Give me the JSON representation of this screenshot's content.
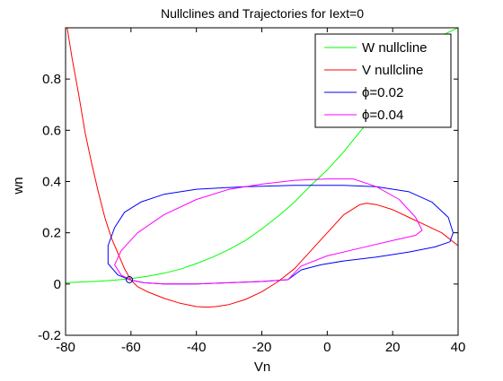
{
  "chart_data": {
    "type": "line",
    "title": "Nullclines and Trajectories for Iext=0",
    "xlabel": "Vn",
    "ylabel": "wn",
    "xlim": [
      -80,
      40
    ],
    "ylim": [
      -0.2,
      1.0
    ],
    "xticks": [
      "-80",
      "-60",
      "-40",
      "-20",
      "0",
      "20",
      "40"
    ],
    "yticks": [
      "-0.2",
      "0",
      "0.2",
      "0.4",
      "0.6",
      "0.8"
    ],
    "grid": false,
    "legend_position": "top-right",
    "series": [
      {
        "name": "W nullcline",
        "color": "#00ff00",
        "points": [
          [
            -80,
            0.005
          ],
          [
            -75,
            0.008
          ],
          [
            -70,
            0.011
          ],
          [
            -65,
            0.015
          ],
          [
            -60,
            0.021
          ],
          [
            -55,
            0.03
          ],
          [
            -50,
            0.042
          ],
          [
            -45,
            0.058
          ],
          [
            -40,
            0.08
          ],
          [
            -35,
            0.105
          ],
          [
            -30,
            0.135
          ],
          [
            -25,
            0.17
          ],
          [
            -20,
            0.215
          ],
          [
            -15,
            0.265
          ],
          [
            -10,
            0.32
          ],
          [
            -5,
            0.385
          ],
          [
            0,
            0.445
          ],
          [
            5,
            0.515
          ],
          [
            10,
            0.595
          ],
          [
            15,
            0.67
          ],
          [
            20,
            0.755
          ],
          [
            25,
            0.835
          ],
          [
            30,
            0.915
          ],
          [
            35,
            0.97
          ],
          [
            40,
            1.0
          ]
        ]
      },
      {
        "name": "V nullcline",
        "color": "#ff0000",
        "points": [
          [
            -79.5,
            1.0
          ],
          [
            -78,
            0.88
          ],
          [
            -76,
            0.74
          ],
          [
            -74,
            0.59
          ],
          [
            -72,
            0.47
          ],
          [
            -70,
            0.36
          ],
          [
            -68,
            0.26
          ],
          [
            -66,
            0.18
          ],
          [
            -64,
            0.12
          ],
          [
            -62,
            0.06
          ],
          [
            -60,
            0.015
          ],
          [
            -58,
            -0.01
          ],
          [
            -55,
            -0.03
          ],
          [
            -50,
            -0.055
          ],
          [
            -45,
            -0.075
          ],
          [
            -40,
            -0.088
          ],
          [
            -37,
            -0.09
          ],
          [
            -34,
            -0.088
          ],
          [
            -30,
            -0.08
          ],
          [
            -25,
            -0.06
          ],
          [
            -20,
            -0.03
          ],
          [
            -15,
            0.01
          ],
          [
            -10,
            0.06
          ],
          [
            -5,
            0.13
          ],
          [
            0,
            0.2
          ],
          [
            5,
            0.27
          ],
          [
            10,
            0.31
          ],
          [
            12,
            0.315
          ],
          [
            15,
            0.31
          ],
          [
            20,
            0.29
          ],
          [
            25,
            0.26
          ],
          [
            30,
            0.23
          ],
          [
            35,
            0.2
          ],
          [
            40,
            0.15
          ]
        ]
      },
      {
        "name": "ϕ=0.02",
        "color": "#0000ff",
        "closed": true,
        "points": [
          [
            -60,
            0.015
          ],
          [
            -64,
            0.035
          ],
          [
            -67,
            0.08
          ],
          [
            -67,
            0.15
          ],
          [
            -65,
            0.22
          ],
          [
            -62,
            0.28
          ],
          [
            -57,
            0.32
          ],
          [
            -50,
            0.35
          ],
          [
            -40,
            0.37
          ],
          [
            -25,
            0.38
          ],
          [
            -10,
            0.385
          ],
          [
            5,
            0.385
          ],
          [
            15,
            0.38
          ],
          [
            25,
            0.36
          ],
          [
            32,
            0.32
          ],
          [
            37,
            0.26
          ],
          [
            38.5,
            0.2
          ],
          [
            37.5,
            0.165
          ],
          [
            33,
            0.145
          ],
          [
            25,
            0.125
          ],
          [
            15,
            0.105
          ],
          [
            5,
            0.09
          ],
          [
            -2,
            0.075
          ],
          [
            -8,
            0.055
          ],
          [
            -12,
            0.017
          ],
          [
            -20,
            0.01
          ],
          [
            -30,
            0.005
          ],
          [
            -40,
            0.0
          ],
          [
            -50,
            0.0
          ],
          [
            -56,
            0.005
          ],
          [
            -60,
            0.015
          ]
        ]
      },
      {
        "name": "ϕ=0.04",
        "color": "#ff00ff",
        "closed": true,
        "points": [
          [
            -60,
            0.015
          ],
          [
            -63,
            0.035
          ],
          [
            -65,
            0.075
          ],
          [
            -63,
            0.13
          ],
          [
            -58,
            0.2
          ],
          [
            -50,
            0.27
          ],
          [
            -40,
            0.33
          ],
          [
            -30,
            0.37
          ],
          [
            -20,
            0.39
          ],
          [
            -10,
            0.405
          ],
          [
            0,
            0.41
          ],
          [
            8,
            0.41
          ],
          [
            15,
            0.38
          ],
          [
            22,
            0.33
          ],
          [
            27,
            0.26
          ],
          [
            29,
            0.21
          ],
          [
            27,
            0.19
          ],
          [
            20,
            0.17
          ],
          [
            10,
            0.14
          ],
          [
            0,
            0.11
          ],
          [
            -8,
            0.07
          ],
          [
            -12,
            0.017
          ],
          [
            -20,
            0.01
          ],
          [
            -30,
            0.005
          ],
          [
            -40,
            0.0
          ],
          [
            -50,
            0.0
          ],
          [
            -56,
            0.005
          ],
          [
            -60,
            0.015
          ]
        ]
      }
    ],
    "markers": [
      {
        "name": "fixed point",
        "x": -60.5,
        "y": 0.017,
        "shape": "circle",
        "color": "#000080"
      }
    ]
  }
}
